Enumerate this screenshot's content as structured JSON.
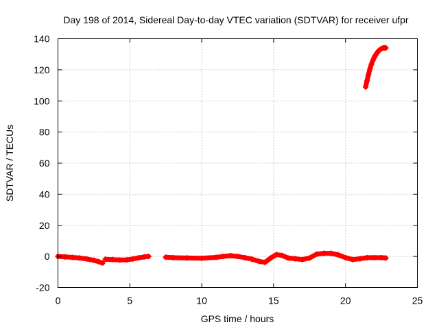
{
  "chart_data": {
    "type": "line",
    "title": "Day 198 of 2014, Sidereal Day-to-day VTEC variation (SDTVAR) for receiver ufpr",
    "xlabel": "GPS time / hours",
    "ylabel": "SDTVAR / TECUs",
    "xlim": [
      0,
      25
    ],
    "ylim": [
      -20,
      140
    ],
    "xticks": [
      0,
      5,
      10,
      15,
      20,
      25
    ],
    "yticks": [
      -20,
      0,
      20,
      40,
      60,
      80,
      100,
      120,
      140
    ],
    "grid": true,
    "series": [
      {
        "name": "SDTVAR",
        "color": "#ff0000",
        "segments": [
          {
            "x": [
              0.0,
              0.5,
              1.0,
              1.5,
              2.0,
              2.5,
              2.8,
              3.1
            ],
            "y": [
              0.0,
              -0.3,
              -0.6,
              -1.0,
              -1.6,
              -2.5,
              -3.3,
              -4.2
            ]
          },
          {
            "x": [
              3.3,
              3.8,
              4.3,
              4.8,
              5.2,
              5.6,
              6.0,
              6.3
            ],
            "y": [
              -1.8,
              -2.0,
              -2.3,
              -2.2,
              -1.6,
              -0.9,
              -0.3,
              0.0
            ]
          },
          {
            "x": [
              7.5,
              8.0,
              9.0,
              10.0,
              11.0,
              11.5,
              12.0,
              12.5,
              13.0,
              13.5,
              14.0,
              14.4,
              14.8,
              15.2,
              15.6,
              16.0,
              16.5,
              17.0,
              17.5,
              18.0,
              18.5,
              19.0,
              19.5,
              20.0,
              20.5,
              21.0,
              21.5,
              22.0,
              22.5,
              22.8
            ],
            "y": [
              -0.5,
              -0.8,
              -1.0,
              -1.2,
              -0.6,
              0.0,
              0.5,
              0.0,
              -0.8,
              -1.8,
              -3.2,
              -3.8,
              -1.0,
              1.2,
              0.6,
              -1.0,
              -1.5,
              -2.0,
              -1.0,
              1.5,
              2.0,
              2.0,
              1.0,
              -0.8,
              -2.0,
              -1.5,
              -0.8,
              -0.8,
              -0.8,
              -1.0
            ]
          },
          {
            "x": [
              21.4,
              21.5,
              21.6,
              21.7,
              21.8,
              21.9,
              22.0,
              22.1,
              22.2,
              22.3,
              22.4,
              22.5,
              22.6,
              22.7,
              22.8
            ],
            "y": [
              109,
              113,
              117,
              120.5,
              123.5,
              126,
              128,
              129.6,
              131,
              132.1,
              133,
              133.6,
              134,
              134.1,
              134.1
            ]
          }
        ]
      }
    ]
  }
}
